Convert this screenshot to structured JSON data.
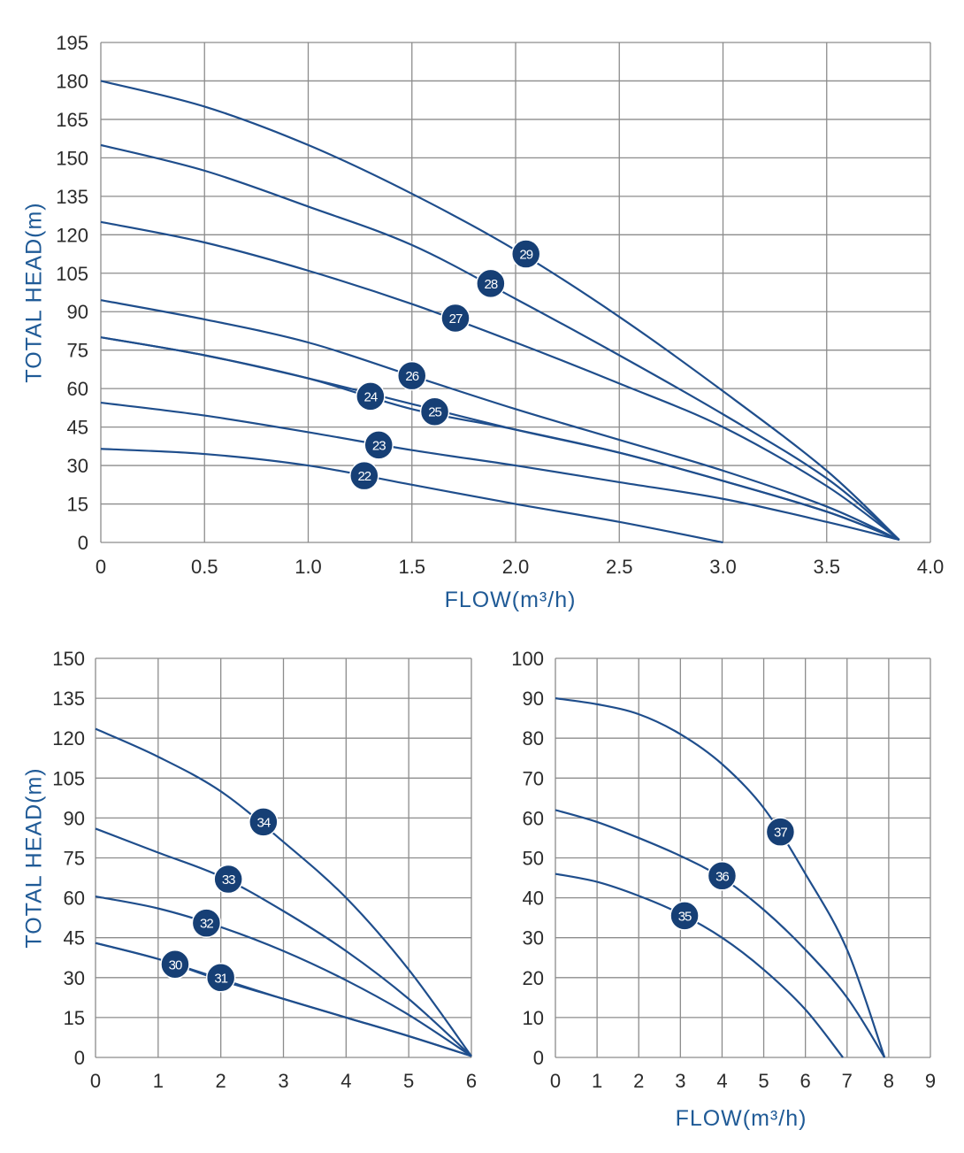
{
  "colors": {
    "curve": "#1f4e8c",
    "badge": "#163f75",
    "grid": "#8c8c8c",
    "axis_title": "#1f5a96",
    "tick": "#2b2b2b"
  },
  "chart_data": [
    {
      "type": "line",
      "xlabel": "FLOW(m³/h)",
      "ylabel": "TOTAL HEAD(m)",
      "xlim": [
        0,
        4.0
      ],
      "ylim": [
        0,
        195
      ],
      "x_ticks": [
        "0",
        "0.5",
        "1.0",
        "1.5",
        "2.0",
        "2.5",
        "3.0",
        "3.5",
        "4.0"
      ],
      "y_ticks": [
        "0",
        "15",
        "30",
        "45",
        "60",
        "75",
        "90",
        "105",
        "120",
        "135",
        "150",
        "165",
        "180",
        "195"
      ],
      "grid": true,
      "series": [
        {
          "name": "22",
          "marker": {
            "x": 1.27,
            "y": 26
          },
          "points": [
            [
              0,
              36.5
            ],
            [
              0.5,
              34.5
            ],
            [
              1.0,
              30
            ],
            [
              1.5,
              22.5
            ],
            [
              2.0,
              15
            ],
            [
              2.5,
              8
            ],
            [
              3.0,
              0
            ]
          ]
        },
        {
          "name": "23",
          "marker": {
            "x": 1.34,
            "y": 38
          },
          "points": [
            [
              0,
              54.5
            ],
            [
              0.5,
              49.5
            ],
            [
              1.0,
              43
            ],
            [
              1.5,
              36
            ],
            [
              2.0,
              30
            ],
            [
              2.5,
              23.5
            ],
            [
              3.0,
              17
            ],
            [
              3.5,
              8
            ],
            [
              3.85,
              1
            ]
          ]
        },
        {
          "name": "24",
          "marker": {
            "x": 1.3,
            "y": 57
          },
          "points": [
            [
              0,
              80
            ],
            [
              0.5,
              73
            ],
            [
              1.0,
              64
            ],
            [
              1.5,
              52
            ],
            [
              2.0,
              44
            ],
            [
              2.5,
              35
            ],
            [
              3.0,
              24
            ],
            [
              3.5,
              12
            ],
            [
              3.85,
              1
            ]
          ]
        },
        {
          "name": "25",
          "marker": {
            "x": 1.61,
            "y": 51
          },
          "points": [
            [
              0,
              80
            ],
            [
              0.5,
              73
            ],
            [
              1.0,
              64
            ],
            [
              1.5,
              54
            ],
            [
              2.0,
              44
            ],
            [
              2.5,
              35
            ],
            [
              3.0,
              24
            ],
            [
              3.5,
              12
            ],
            [
              3.85,
              1
            ]
          ]
        },
        {
          "name": "26",
          "marker": {
            "x": 1.5,
            "y": 65
          },
          "points": [
            [
              0,
              94.5
            ],
            [
              0.5,
              87
            ],
            [
              1.0,
              78
            ],
            [
              1.5,
              65
            ],
            [
              2.0,
              52
            ],
            [
              2.5,
              40
            ],
            [
              3.0,
              28
            ],
            [
              3.5,
              14
            ],
            [
              3.85,
              1
            ]
          ]
        },
        {
          "name": "27",
          "marker": {
            "x": 1.71,
            "y": 87.5
          },
          "points": [
            [
              0,
              125
            ],
            [
              0.5,
              117
            ],
            [
              1.0,
              106
            ],
            [
              1.5,
              93
            ],
            [
              2.0,
              78
            ],
            [
              2.5,
              62
            ],
            [
              3.0,
              45
            ],
            [
              3.5,
              22
            ],
            [
              3.85,
              1
            ]
          ]
        },
        {
          "name": "28",
          "marker": {
            "x": 1.88,
            "y": 101
          },
          "points": [
            [
              0,
              155
            ],
            [
              0.5,
              145
            ],
            [
              1.0,
              131
            ],
            [
              1.5,
              116
            ],
            [
              2.0,
              95
            ],
            [
              2.5,
              73
            ],
            [
              3.0,
              50
            ],
            [
              3.5,
              25
            ],
            [
              3.85,
              1
            ]
          ]
        },
        {
          "name": "29",
          "marker": {
            "x": 2.05,
            "y": 112.5
          },
          "points": [
            [
              0,
              180
            ],
            [
              0.5,
              170
            ],
            [
              1.0,
              155
            ],
            [
              1.5,
              136
            ],
            [
              2.0,
              114
            ],
            [
              2.5,
              88
            ],
            [
              3.0,
              59
            ],
            [
              3.5,
              28
            ],
            [
              3.85,
              1
            ]
          ]
        }
      ]
    },
    {
      "type": "line",
      "xlabel": "",
      "ylabel": "TOTAL HEAD(m)",
      "xlim": [
        0,
        6
      ],
      "ylim": [
        0,
        150
      ],
      "x_ticks": [
        "0",
        "1",
        "2",
        "3",
        "4",
        "5",
        "6"
      ],
      "y_ticks": [
        "0",
        "15",
        "30",
        "45",
        "60",
        "75",
        "90",
        "105",
        "120",
        "135",
        "150"
      ],
      "grid": true,
      "series": [
        {
          "name": "30",
          "marker": {
            "x": 1.27,
            "y": 35
          },
          "points": [
            [
              0,
              43
            ],
            [
              1.0,
              37
            ],
            [
              2.0,
              29
            ],
            [
              3.0,
              22
            ],
            [
              4.0,
              15
            ],
            [
              5.0,
              8
            ],
            [
              6.0,
              0.5
            ]
          ]
        },
        {
          "name": "31",
          "marker": {
            "x": 2.0,
            "y": 30
          },
          "points": [
            [
              0,
              43
            ],
            [
              1.0,
              37
            ],
            [
              2.0,
              29.5
            ],
            [
              3.0,
              22
            ],
            [
              4.0,
              15
            ],
            [
              5.0,
              8
            ],
            [
              6.0,
              0.5
            ]
          ]
        },
        {
          "name": "32",
          "marker": {
            "x": 1.77,
            "y": 50.5
          },
          "points": [
            [
              0,
              60.5
            ],
            [
              1.0,
              56
            ],
            [
              2.0,
              49
            ],
            [
              3.0,
              40
            ],
            [
              4.0,
              29
            ],
            [
              5.0,
              16
            ],
            [
              6.0,
              0.5
            ]
          ]
        },
        {
          "name": "33",
          "marker": {
            "x": 2.12,
            "y": 67
          },
          "points": [
            [
              0,
              86
            ],
            [
              1.0,
              77
            ],
            [
              2.0,
              68
            ],
            [
              3.0,
              55
            ],
            [
              4.0,
              40
            ],
            [
              5.0,
              22
            ],
            [
              6.0,
              0.5
            ]
          ]
        },
        {
          "name": "34",
          "marker": {
            "x": 2.68,
            "y": 88.5
          },
          "points": [
            [
              0,
              123.5
            ],
            [
              1.0,
              113
            ],
            [
              2.0,
              100
            ],
            [
              3.0,
              81
            ],
            [
              4.0,
              60
            ],
            [
              5.0,
              33
            ],
            [
              6.0,
              0.5
            ]
          ]
        }
      ]
    },
    {
      "type": "line",
      "xlabel": "FLOW(m³/h)",
      "ylabel": "",
      "xlim": [
        0,
        9
      ],
      "ylim": [
        0,
        100
      ],
      "x_ticks": [
        "0",
        "1",
        "2",
        "3",
        "4",
        "5",
        "6",
        "7",
        "8",
        "9"
      ],
      "y_ticks": [
        "0",
        "10",
        "20",
        "30",
        "40",
        "50",
        "60",
        "70",
        "80",
        "90",
        "100"
      ],
      "grid": true,
      "series": [
        {
          "name": "35",
          "marker": {
            "x": 3.1,
            "y": 35.5
          },
          "points": [
            [
              0,
              46
            ],
            [
              1.0,
              44
            ],
            [
              2.0,
              40.5
            ],
            [
              3.0,
              36
            ],
            [
              4.0,
              30
            ],
            [
              5.0,
              22
            ],
            [
              6.0,
              12
            ],
            [
              6.9,
              0
            ]
          ]
        },
        {
          "name": "36",
          "marker": {
            "x": 4.0,
            "y": 45.5
          },
          "points": [
            [
              0,
              62
            ],
            [
              1.0,
              59
            ],
            [
              2.0,
              55
            ],
            [
              3.0,
              50.5
            ],
            [
              4.0,
              45
            ],
            [
              5.0,
              37
            ],
            [
              6.0,
              27
            ],
            [
              7.0,
              15
            ],
            [
              7.9,
              0
            ]
          ]
        },
        {
          "name": "37",
          "marker": {
            "x": 5.4,
            "y": 56.5
          },
          "points": [
            [
              0,
              90
            ],
            [
              1.0,
              88.5
            ],
            [
              2.0,
              86
            ],
            [
              3.0,
              81
            ],
            [
              4.0,
              73.5
            ],
            [
              5.0,
              62.5
            ],
            [
              6.0,
              46
            ],
            [
              7.0,
              27
            ],
            [
              7.9,
              0
            ]
          ]
        }
      ]
    }
  ]
}
